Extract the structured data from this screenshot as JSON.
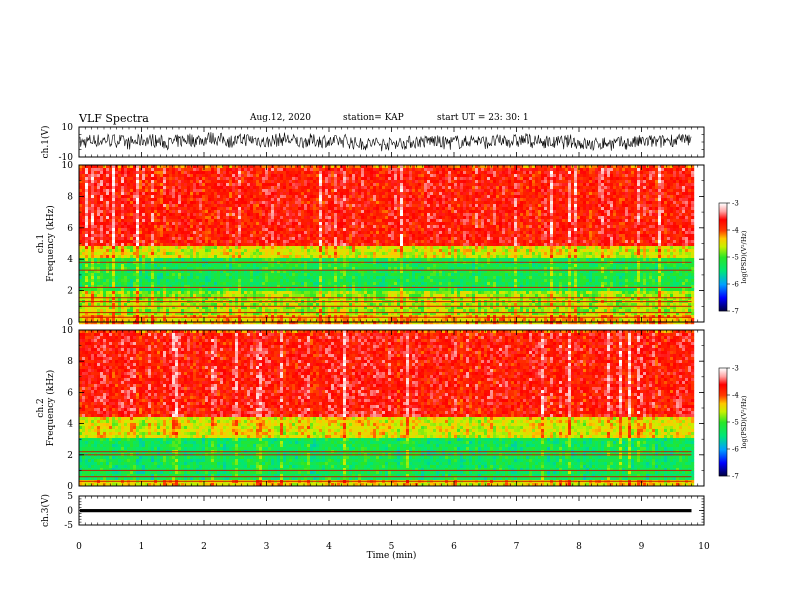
{
  "header": {
    "title": "VLF Spectra",
    "date": "Aug.12, 2020",
    "station": "station= KAP",
    "start": "start  UT =   23: 30: 1"
  },
  "chart_data": [
    {
      "type": "line",
      "panel": "ch1-waveform",
      "ylabel": "ch.1(V)",
      "ylim": [
        -10,
        10
      ],
      "yticks": [
        10,
        -10
      ],
      "xlim": [
        0,
        10
      ],
      "color": "#000000",
      "note_values": "dense noisy signal, roughly between -6 and +6 V over 0 to 9.8 min"
    },
    {
      "type": "heatmap",
      "panel": "ch1-spectrogram",
      "ylabel": "ch.1\nFrequency (kHz)",
      "ylim": [
        0,
        10
      ],
      "yticks": [
        0,
        2,
        4,
        6,
        8,
        10
      ],
      "xlim": [
        0,
        10
      ],
      "data_xmax": 9.8,
      "colorbar": {
        "label": "log(PSD)(V²/Hz)",
        "range": [
          -7,
          -3
        ],
        "ticks": [
          -3,
          -4,
          -5,
          -6,
          -7
        ]
      },
      "bands": [
        {
          "from": 0,
          "to": 0.5,
          "level": -4.3
        },
        {
          "from": 0.5,
          "to": 2.0,
          "level": -4.7
        },
        {
          "from": 2.0,
          "to": 4.2,
          "level": -5.2
        },
        {
          "from": 4.2,
          "to": 5.0,
          "level": -4.5
        },
        {
          "from": 5.0,
          "to": 10,
          "level": -3.7
        }
      ],
      "lines_khz": [
        0.3,
        0.6,
        1.0,
        1.3,
        1.55,
        2.2,
        3.3,
        3.8
      ]
    },
    {
      "type": "heatmap",
      "panel": "ch2-spectrogram",
      "ylabel": "ch.2\nFrequency (kHz)",
      "ylim": [
        0,
        10
      ],
      "yticks": [
        0,
        2,
        4,
        6,
        8,
        10
      ],
      "xlim": [
        0,
        10
      ],
      "data_xmax": 9.8,
      "colorbar": {
        "label": "log(PSD)(V²/Hz)",
        "range": [
          -7,
          -3
        ],
        "ticks": [
          -3,
          -4,
          -5,
          -6,
          -7
        ]
      },
      "bands": [
        {
          "from": 0,
          "to": 0.5,
          "level": -4.4
        },
        {
          "from": 0.5,
          "to": 3.2,
          "level": -5.3
        },
        {
          "from": 3.2,
          "to": 4.5,
          "level": -4.5
        },
        {
          "from": 4.5,
          "to": 10,
          "level": -3.7
        }
      ],
      "lines_khz": [
        0.3,
        0.6,
        1.0,
        2.0,
        2.2
      ]
    },
    {
      "type": "line",
      "panel": "ch3-waveform",
      "ylabel": "ch.3(V)",
      "ylim": [
        -5,
        5
      ],
      "yticks": [
        5,
        0,
        -5
      ],
      "xlim": [
        0,
        10
      ],
      "xlabel": "Time (min)",
      "xticks": [
        0,
        1,
        2,
        3,
        4,
        5,
        6,
        7,
        8,
        9,
        10
      ],
      "color": "#000000",
      "note_values": "nearly constant band around 0 V, amplitude about 0.5 V, 0 to 9.8 min"
    }
  ]
}
